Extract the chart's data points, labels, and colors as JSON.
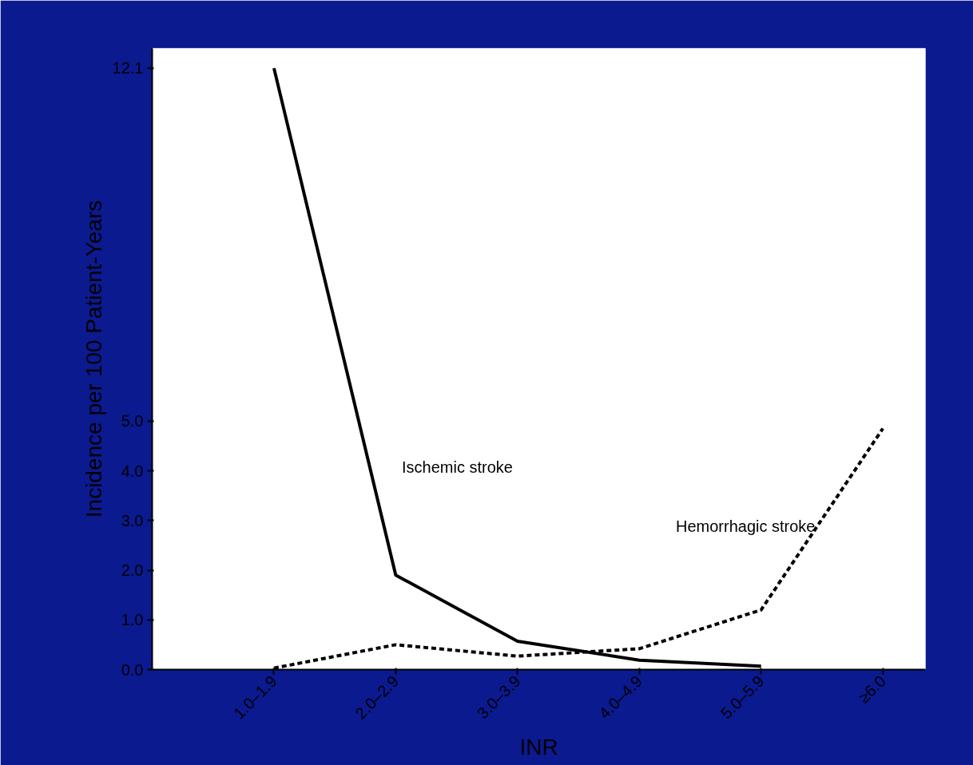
{
  "chart_data": {
    "type": "line",
    "xlabel": "INR",
    "ylabel": "Incidence per 100 Patient-Years",
    "categories": [
      "1.0–1.9",
      "2.0–2.9",
      "3.0–3.9",
      "4.0–4.9",
      "5.0–5.9",
      "≥6.0"
    ],
    "series": [
      {
        "name": "Ischemic stroke",
        "color": "#000000",
        "line_style": "solid",
        "values": [
          12.1,
          1.9,
          0.57,
          0.19,
          0.07,
          null
        ]
      },
      {
        "name": "Hemorrhagic stroke",
        "color": "#000000",
        "line_style": "dashed",
        "values": [
          0.03,
          0.5,
          0.27,
          0.42,
          1.2,
          4.85
        ]
      }
    ],
    "ylim": [
      0,
      12.5
    ],
    "yticks": [
      {
        "value": 0,
        "label": "0.0"
      },
      {
        "value": 1,
        "label": "1.0"
      },
      {
        "value": 2,
        "label": "2.0"
      },
      {
        "value": 3,
        "label": "3.0"
      },
      {
        "value": 4,
        "label": "4.0"
      },
      {
        "value": 5,
        "label": "5.0"
      },
      12.1
    ],
    "grid": false,
    "marker": "none"
  }
}
